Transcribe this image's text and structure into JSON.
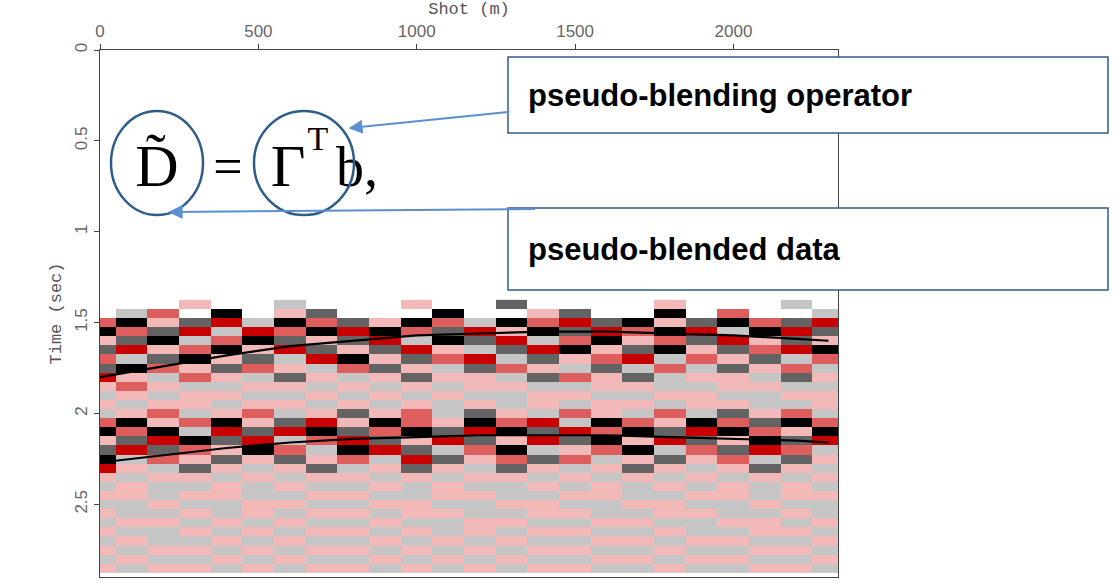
{
  "chart_data": {
    "type": "heatmap",
    "x_label": "Shot (m)",
    "y_label": "Time (sec)",
    "xlim": [
      0,
      2330
    ],
    "xticks": [
      0,
      500,
      1000,
      1500,
      2000
    ],
    "ylim": [
      0,
      2.9
    ],
    "yticks": [
      0,
      0.5,
      1,
      1.5,
      2,
      2.5
    ],
    "grid": false,
    "zlim": [
      -3,
      3
    ],
    "x": [
      0,
      100,
      200,
      300,
      400,
      500,
      600,
      700,
      800,
      900,
      1000,
      1100,
      1200,
      1300,
      1400,
      1500,
      1600,
      1700,
      1800,
      1900,
      2000,
      2100,
      2200,
      2300
    ],
    "y": [
      1.4,
      1.45,
      1.5,
      1.55,
      1.6,
      1.65,
      1.7,
      1.75,
      1.8,
      1.85,
      1.9,
      1.95,
      2.0,
      2.05,
      2.1,
      2.15,
      2.2,
      2.25,
      2.3,
      2.35,
      2.4,
      2.45,
      2.5,
      2.55,
      2.6,
      2.65,
      2.7,
      2.75,
      2.8,
      2.85
    ],
    "cells": [
      [
        0,
        0,
        0,
        -1,
        0,
        0,
        1,
        0,
        0,
        0,
        -1,
        0,
        0,
        2,
        0,
        0,
        0,
        0,
        -1,
        0,
        0,
        0,
        1,
        0
      ],
      [
        0,
        1,
        -2,
        0,
        3,
        0,
        -1,
        2,
        0,
        0,
        0,
        3,
        0,
        0,
        -1,
        2,
        0,
        0,
        3,
        0,
        -2,
        0,
        0,
        1
      ],
      [
        -2,
        3,
        -1,
        2,
        -3,
        1,
        3,
        -2,
        2,
        -1,
        3,
        -2,
        1,
        3,
        -2,
        -3,
        2,
        3,
        -1,
        2,
        3,
        -2,
        2,
        -3
      ],
      [
        3,
        -2,
        2,
        -3,
        1,
        -3,
        -2,
        3,
        -3,
        3,
        -2,
        2,
        -3,
        -1,
        3,
        2,
        -3,
        -2,
        3,
        -3,
        1,
        3,
        -3,
        2
      ],
      [
        -1,
        2,
        3,
        1,
        -2,
        3,
        2,
        -1,
        2,
        -3,
        1,
        3,
        2,
        -3,
        1,
        -2,
        3,
        -1,
        -2,
        2,
        -3,
        -1,
        2,
        -1
      ],
      [
        2,
        -3,
        -1,
        -2,
        3,
        -1,
        -3,
        2,
        -1,
        2,
        -3,
        -1,
        1,
        2,
        -3,
        3,
        -1,
        2,
        3,
        -1,
        2,
        -2,
        -3,
        3
      ],
      [
        -2,
        1,
        2,
        3,
        -1,
        2,
        1,
        -3,
        3,
        -1,
        2,
        -2,
        -3,
        1,
        2,
        -1,
        -2,
        -3,
        1,
        -2,
        -1,
        2,
        1,
        -2
      ],
      [
        2,
        3,
        -2,
        -1,
        2,
        -2,
        -1,
        1,
        -2,
        2,
        -1,
        1,
        2,
        -2,
        -1,
        1,
        2,
        1,
        -2,
        1,
        2,
        -1,
        -2,
        1
      ],
      [
        -3,
        -1,
        1,
        -2,
        -1,
        1,
        2,
        -1,
        1,
        -1,
        2,
        -1,
        -1,
        1,
        2,
        -2,
        -1,
        2,
        1,
        -1,
        -1,
        1,
        2,
        -1
      ],
      [
        -1,
        -2,
        -1,
        1,
        1,
        -1,
        -1,
        1,
        -1,
        1,
        -1,
        1,
        -1,
        -1,
        1,
        1,
        -1,
        -1,
        1,
        1,
        -1,
        -1,
        1,
        1
      ],
      [
        1,
        -1,
        1,
        -1,
        -1,
        1,
        1,
        -1,
        1,
        -1,
        1,
        -1,
        1,
        1,
        -1,
        -1,
        1,
        1,
        -1,
        -1,
        1,
        1,
        -1,
        -1
      ],
      [
        -1,
        1,
        -1,
        -1,
        1,
        -1,
        -1,
        1,
        -1,
        1,
        -1,
        1,
        -1,
        1,
        -1,
        1,
        -1,
        -1,
        1,
        -1,
        -1,
        1,
        1,
        -1
      ],
      [
        1,
        -1,
        -2,
        1,
        -1,
        -2,
        1,
        -1,
        2,
        -1,
        -2,
        1,
        2,
        -1,
        1,
        -2,
        -1,
        1,
        -2,
        1,
        2,
        -1,
        -2,
        1
      ],
      [
        -2,
        3,
        -1,
        -2,
        3,
        -1,
        2,
        -3,
        -1,
        3,
        -2,
        -1,
        3,
        -2,
        -3,
        1,
        3,
        -2,
        -1,
        3,
        -2,
        2,
        3,
        -2
      ],
      [
        3,
        -2,
        3,
        1,
        -3,
        2,
        -3,
        3,
        2,
        -2,
        3,
        2,
        -3,
        3,
        2,
        -3,
        -2,
        3,
        2,
        -3,
        3,
        -2,
        -1,
        3
      ],
      [
        -1,
        2,
        -3,
        3,
        2,
        -3,
        1,
        -2,
        -3,
        2,
        -1,
        -3,
        2,
        -1,
        -3,
        2,
        3,
        -1,
        -3,
        2,
        -1,
        3,
        2,
        -3
      ],
      [
        2,
        -3,
        2,
        -2,
        -1,
        3,
        -2,
        1,
        3,
        -3,
        2,
        1,
        -2,
        3,
        1,
        -1,
        -2,
        3,
        1,
        -2,
        2,
        -3,
        -2,
        1
      ],
      [
        3,
        1,
        -2,
        -1,
        2,
        -1,
        2,
        -1,
        -2,
        1,
        -3,
        2,
        -1,
        -2,
        2,
        -2,
        1,
        -1,
        2,
        -1,
        -2,
        1,
        2,
        -1
      ],
      [
        -3,
        -1,
        1,
        2,
        -1,
        1,
        -1,
        2,
        1,
        -1,
        2,
        -1,
        1,
        2,
        -1,
        1,
        -1,
        2,
        -1,
        1,
        -1,
        2,
        -1,
        1
      ],
      [
        -1,
        1,
        -1,
        -1,
        1,
        -1,
        1,
        -1,
        -1,
        1,
        -1,
        1,
        -1,
        -1,
        1,
        -1,
        1,
        -1,
        1,
        -1,
        1,
        -1,
        1,
        -1
      ],
      [
        1,
        -1,
        1,
        1,
        -1,
        1,
        -1,
        1,
        1,
        -1,
        1,
        -1,
        1,
        1,
        -1,
        1,
        -1,
        1,
        -1,
        1,
        -1,
        1,
        -1,
        1
      ],
      [
        -1,
        -1,
        1,
        -1,
        -1,
        1,
        1,
        -1,
        -1,
        1,
        1,
        -1,
        -1,
        1,
        1,
        -1,
        -1,
        1,
        1,
        -1,
        -1,
        1,
        -1,
        -1
      ],
      [
        1,
        1,
        -1,
        1,
        1,
        -1,
        -1,
        1,
        1,
        -1,
        -1,
        1,
        1,
        -1,
        -1,
        1,
        1,
        -1,
        -1,
        1,
        1,
        -1,
        1,
        1
      ],
      [
        -1,
        1,
        1,
        -1,
        1,
        -1,
        1,
        -1,
        -1,
        1,
        -1,
        -1,
        1,
        1,
        -1,
        -1,
        1,
        1,
        -1,
        -1,
        1,
        1,
        -1,
        1
      ],
      [
        1,
        -1,
        -1,
        1,
        -1,
        1,
        -1,
        1,
        1,
        -1,
        1,
        1,
        -1,
        -1,
        1,
        1,
        -1,
        -1,
        1,
        1,
        -1,
        -1,
        1,
        -1
      ],
      [
        -1,
        1,
        1,
        -1,
        1,
        -1,
        1,
        -1,
        -1,
        1,
        -1,
        1,
        -1,
        1,
        -1,
        -1,
        1,
        1,
        -1,
        1,
        1,
        -1,
        -1,
        1
      ],
      [
        1,
        -1,
        1,
        1,
        -1,
        1,
        -1,
        1,
        1,
        -1,
        1,
        -1,
        1,
        -1,
        1,
        1,
        -1,
        -1,
        1,
        -1,
        -1,
        1,
        1,
        -1
      ],
      [
        -1,
        1,
        -1,
        -1,
        1,
        -1,
        1,
        -1,
        -1,
        1,
        -1,
        1,
        -1,
        1,
        -1,
        -1,
        1,
        1,
        -1,
        1,
        1,
        -1,
        -1,
        1
      ],
      [
        1,
        -1,
        1,
        1,
        -1,
        1,
        -1,
        1,
        1,
        -1,
        1,
        -1,
        1,
        -1,
        1,
        1,
        -1,
        -1,
        1,
        -1,
        -1,
        1,
        1,
        -1
      ],
      [
        -1,
        1,
        -1,
        -1,
        1,
        -1,
        1,
        -1,
        -1,
        1,
        -1,
        1,
        -1,
        1,
        -1,
        -1,
        1,
        1,
        -1,
        1,
        1,
        -1,
        -1,
        1
      ]
    ],
    "series": [
      {
        "type": "line",
        "color": "#000000",
        "x": [
          0,
          200,
          400,
          600,
          800,
          1000,
          1200,
          1400,
          1600,
          1800,
          2000,
          2200,
          2300
        ],
        "values": [
          1.8,
          1.74,
          1.68,
          1.63,
          1.6,
          1.57,
          1.56,
          1.55,
          1.55,
          1.56,
          1.57,
          1.59,
          1.6
        ]
      },
      {
        "type": "line",
        "color": "#000000",
        "x": [
          0,
          200,
          400,
          600,
          800,
          1000,
          1200,
          1400,
          1600,
          1800,
          2000,
          2200,
          2300
        ],
        "values": [
          2.27,
          2.23,
          2.19,
          2.16,
          2.14,
          2.13,
          2.12,
          2.12,
          2.12,
          2.13,
          2.14,
          2.15,
          2.16
        ]
      }
    ],
    "formula": {
      "lhs": "D̃",
      "equals": "=",
      "operator": "Γ",
      "superscript": "T",
      "rhs": "b,"
    },
    "annotations": [
      "pseudo-blending operator",
      "pseudo-blended data"
    ]
  }
}
